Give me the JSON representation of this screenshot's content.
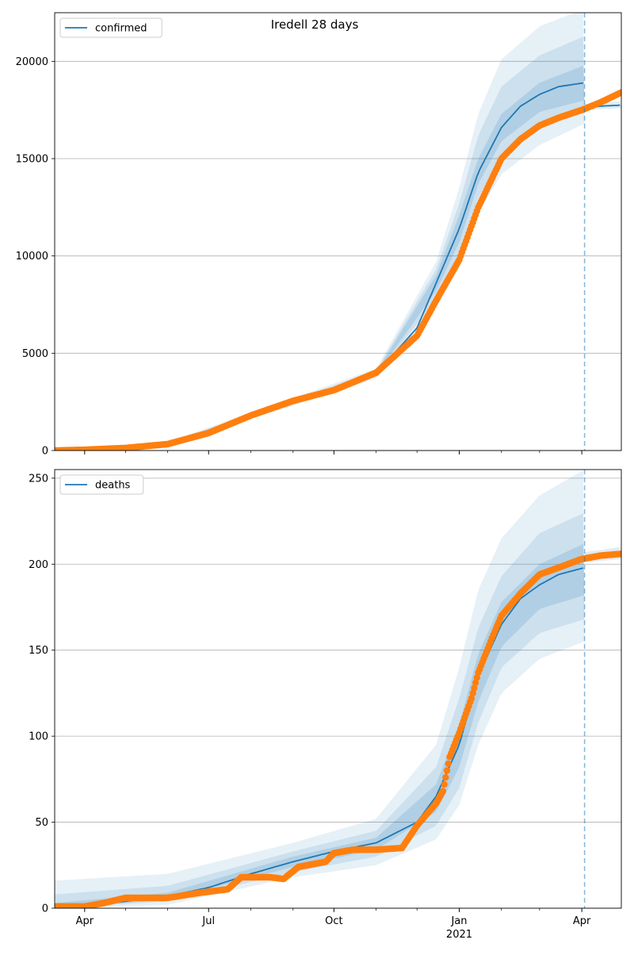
{
  "figure": {
    "suptitle": "Iredell 28 days"
  },
  "chart_data": [
    {
      "type": "line",
      "name": "confirmed",
      "legend": {
        "label": "confirmed",
        "position": "upper-left"
      },
      "ylim": [
        0,
        22500
      ],
      "xlim": [
        "2020-03-10",
        "2021-04-30"
      ],
      "yticks": [
        0,
        5000,
        10000,
        15000,
        20000
      ],
      "ytick_labels": [
        "0",
        "5000",
        "10000",
        "15000",
        "20000"
      ],
      "xticks": [
        "2020-04-01",
        "2020-07-01",
        "2020-10-01",
        "2021-01-01",
        "2021-04-01"
      ],
      "xtick_labels": [
        "Apr",
        "Jul",
        "Oct",
        "Jan",
        "Apr"
      ],
      "year_label": "2021",
      "grid": "horizontal",
      "forecast_start": "2021-04-03",
      "series": [
        {
          "name": "confirmed",
          "kind": "model-median",
          "color": "#1f77b4",
          "points": [
            [
              "2020-03-10",
              0
            ],
            [
              "2020-04-01",
              30
            ],
            [
              "2020-05-01",
              150
            ],
            [
              "2020-06-01",
              380
            ],
            [
              "2020-07-01",
              950
            ],
            [
              "2020-08-01",
              1750
            ],
            [
              "2020-09-01",
              2450
            ],
            [
              "2020-10-01",
              3050
            ],
            [
              "2020-11-01",
              3950
            ],
            [
              "2020-12-01",
              6300
            ],
            [
              "2020-12-15",
              8600
            ],
            [
              "2021-01-01",
              11400
            ],
            [
              "2021-01-15",
              14300
            ],
            [
              "2021-02-01",
              16600
            ],
            [
              "2021-02-15",
              17700
            ],
            [
              "2021-03-01",
              18300
            ],
            [
              "2021-03-15",
              18700
            ],
            [
              "2021-04-03",
              18900
            ]
          ]
        },
        {
          "name": "confirmed-projection",
          "kind": "model-projection",
          "color": "#1f77b4",
          "points": [
            [
              "2021-04-03",
              17600
            ],
            [
              "2021-04-15",
              17700
            ],
            [
              "2021-04-30",
              17750
            ]
          ]
        }
      ],
      "bands": [
        {
          "level": "outer",
          "lower": [
            [
              "2020-03-10",
              0
            ],
            [
              "2020-06-01",
              300
            ],
            [
              "2020-09-01",
              2300
            ],
            [
              "2020-11-01",
              3700
            ],
            [
              "2020-12-15",
              7400
            ],
            [
              "2021-01-01",
              9400
            ],
            [
              "2021-01-15",
              12200
            ],
            [
              "2021-02-01",
              14200
            ],
            [
              "2021-03-01",
              15700
            ],
            [
              "2021-04-03",
              16800
            ]
          ],
          "upper": [
            [
              "2020-03-10",
              0
            ],
            [
              "2020-06-01",
              450
            ],
            [
              "2020-09-01",
              2700
            ],
            [
              "2020-11-01",
              4200
            ],
            [
              "2020-12-15",
              9700
            ],
            [
              "2021-01-01",
              13500
            ],
            [
              "2021-01-15",
              17300
            ],
            [
              "2021-02-01",
              20100
            ],
            [
              "2021-03-01",
              21800
            ],
            [
              "2021-04-03",
              22700
            ]
          ]
        },
        {
          "level": "middle",
          "lower": [
            [
              "2020-03-10",
              0
            ],
            [
              "2020-06-01",
              330
            ],
            [
              "2020-09-01",
              2350
            ],
            [
              "2020-11-01",
              3800
            ],
            [
              "2020-12-15",
              7800
            ],
            [
              "2021-01-01",
              10000
            ],
            [
              "2021-01-15",
              13000
            ],
            [
              "2021-02-01",
              15100
            ],
            [
              "2021-03-01",
              16600
            ],
            [
              "2021-04-03",
              17400
            ]
          ],
          "upper": [
            [
              "2020-03-10",
              0
            ],
            [
              "2020-06-01",
              420
            ],
            [
              "2020-09-01",
              2600
            ],
            [
              "2020-11-01",
              4100
            ],
            [
              "2020-12-15",
              9300
            ],
            [
              "2021-01-01",
              12700
            ],
            [
              "2021-01-15",
              16200
            ],
            [
              "2021-02-01",
              18700
            ],
            [
              "2021-03-01",
              20300
            ],
            [
              "2021-04-03",
              21300
            ]
          ]
        },
        {
          "level": "inner",
          "lower": [
            [
              "2020-03-10",
              0
            ],
            [
              "2020-06-01",
              360
            ],
            [
              "2020-09-01",
              2400
            ],
            [
              "2020-11-01",
              3880
            ],
            [
              "2020-12-15",
              8200
            ],
            [
              "2021-01-01",
              10700
            ],
            [
              "2021-01-15",
              13700
            ],
            [
              "2021-02-01",
              15900
            ],
            [
              "2021-03-01",
              17400
            ],
            [
              "2021-04-03",
              18000
            ]
          ],
          "upper": [
            [
              "2020-03-10",
              0
            ],
            [
              "2020-06-01",
              400
            ],
            [
              "2020-09-01",
              2520
            ],
            [
              "2020-11-01",
              4020
            ],
            [
              "2020-12-15",
              9000
            ],
            [
              "2021-01-01",
              12100
            ],
            [
              "2021-01-15",
              15000
            ],
            [
              "2021-02-01",
              17300
            ],
            [
              "2021-03-01",
              18900
            ],
            [
              "2021-04-03",
              19800
            ]
          ]
        }
      ],
      "projection_band": {
        "lower": [
          [
            "2021-04-03",
            17500
          ],
          [
            "2021-04-30",
            17600
          ]
        ],
        "upper": [
          [
            "2021-04-03",
            17800
          ],
          [
            "2021-04-30",
            17950
          ]
        ]
      },
      "observed": {
        "color": "#ff7f0e",
        "points": [
          [
            "2020-03-10",
            0
          ],
          [
            "2020-04-01",
            40
          ],
          [
            "2020-05-01",
            130
          ],
          [
            "2020-06-01",
            330
          ],
          [
            "2020-07-01",
            900
          ],
          [
            "2020-08-01",
            1800
          ],
          [
            "2020-09-01",
            2550
          ],
          [
            "2020-10-01",
            3100
          ],
          [
            "2020-11-01",
            4000
          ],
          [
            "2020-12-01",
            5900
          ],
          [
            "2020-12-15",
            7700
          ],
          [
            "2021-01-01",
            9800
          ],
          [
            "2021-01-15",
            12500
          ],
          [
            "2021-02-01",
            15000
          ],
          [
            "2021-02-15",
            16000
          ],
          [
            "2021-03-01",
            16700
          ],
          [
            "2021-03-15",
            17100
          ],
          [
            "2021-04-01",
            17500
          ],
          [
            "2021-04-15",
            17900
          ],
          [
            "2021-04-30",
            18400
          ]
        ]
      }
    },
    {
      "type": "line",
      "name": "deaths",
      "legend": {
        "label": "deaths",
        "position": "upper-left"
      },
      "ylim": [
        0,
        255
      ],
      "xlim": [
        "2020-03-10",
        "2021-04-30"
      ],
      "yticks": [
        0,
        50,
        100,
        150,
        200,
        250
      ],
      "ytick_labels": [
        "0",
        "50",
        "100",
        "150",
        "200",
        "250"
      ],
      "xticks": [
        "2020-04-01",
        "2020-07-01",
        "2020-10-01",
        "2021-01-01",
        "2021-04-01"
      ],
      "xtick_labels": [
        "Apr",
        "Jul",
        "Oct",
        "Jan",
        "Apr"
      ],
      "year_label": "2021",
      "grid": "horizontal",
      "forecast_start": "2021-04-03",
      "series": [
        {
          "name": "deaths",
          "kind": "model-median",
          "color": "#1f77b4",
          "points": [
            [
              "2020-03-10",
              0
            ],
            [
              "2020-04-01",
              1
            ],
            [
              "2020-05-01",
              4
            ],
            [
              "2020-06-01",
              7
            ],
            [
              "2020-07-01",
              12
            ],
            [
              "2020-08-01",
              20
            ],
            [
              "2020-09-01",
              27
            ],
            [
              "2020-10-01",
              33
            ],
            [
              "2020-11-01",
              38
            ],
            [
              "2020-12-01",
              50
            ],
            [
              "2020-12-15",
              65
            ],
            [
              "2021-01-01",
              95
            ],
            [
              "2021-01-15",
              135
            ],
            [
              "2021-02-01",
              165
            ],
            [
              "2021-02-15",
              180
            ],
            [
              "2021-03-01",
              188
            ],
            [
              "2021-03-15",
              194
            ],
            [
              "2021-04-03",
              198
            ]
          ]
        }
      ],
      "bands": [
        {
          "level": "outer",
          "lower": [
            [
              "2020-03-10",
              0
            ],
            [
              "2020-06-01",
              2
            ],
            [
              "2020-09-01",
              18
            ],
            [
              "2020-11-01",
              25
            ],
            [
              "2020-12-15",
              40
            ],
            [
              "2021-01-01",
              60
            ],
            [
              "2021-01-15",
              95
            ],
            [
              "2021-02-01",
              125
            ],
            [
              "2021-03-01",
              145
            ],
            [
              "2021-04-03",
              155
            ]
          ],
          "upper": [
            [
              "2020-03-10",
              16
            ],
            [
              "2020-06-01",
              20
            ],
            [
              "2020-09-01",
              38
            ],
            [
              "2020-11-01",
              52
            ],
            [
              "2020-12-15",
              95
            ],
            [
              "2021-01-01",
              140
            ],
            [
              "2021-01-15",
              185
            ],
            [
              "2021-02-01",
              215
            ],
            [
              "2021-03-01",
              240
            ],
            [
              "2021-04-03",
              255
            ]
          ]
        },
        {
          "level": "middle",
          "lower": [
            [
              "2020-03-10",
              0
            ],
            [
              "2020-06-01",
              4
            ],
            [
              "2020-09-01",
              21
            ],
            [
              "2020-11-01",
              30
            ],
            [
              "2020-12-15",
              48
            ],
            [
              "2021-01-01",
              70
            ],
            [
              "2021-01-15",
              108
            ],
            [
              "2021-02-01",
              140
            ],
            [
              "2021-03-01",
              160
            ],
            [
              "2021-04-03",
              168
            ]
          ],
          "upper": [
            [
              "2020-03-10",
              8
            ],
            [
              "2020-06-01",
              13
            ],
            [
              "2020-09-01",
              33
            ],
            [
              "2020-11-01",
              45
            ],
            [
              "2020-12-15",
              82
            ],
            [
              "2021-01-01",
              122
            ],
            [
              "2021-01-15",
              163
            ],
            [
              "2021-02-01",
              193
            ],
            [
              "2021-03-01",
              218
            ],
            [
              "2021-04-03",
              230
            ]
          ]
        },
        {
          "level": "inner",
          "lower": [
            [
              "2020-03-10",
              0
            ],
            [
              "2020-06-01",
              5
            ],
            [
              "2020-09-01",
              24
            ],
            [
              "2020-11-01",
              34
            ],
            [
              "2020-12-15",
              56
            ],
            [
              "2021-01-01",
              82
            ],
            [
              "2021-01-15",
              120
            ],
            [
              "2021-02-01",
              152
            ],
            [
              "2021-03-01",
              174
            ],
            [
              "2021-04-03",
              182
            ]
          ],
          "upper": [
            [
              "2020-03-10",
              3
            ],
            [
              "2020-06-01",
              9
            ],
            [
              "2020-09-01",
              30
            ],
            [
              "2020-11-01",
              41
            ],
            [
              "2020-12-15",
              72
            ],
            [
              "2021-01-01",
              107
            ],
            [
              "2021-01-15",
              148
            ],
            [
              "2021-02-01",
              178
            ],
            [
              "2021-03-01",
              200
            ],
            [
              "2021-04-03",
              212
            ]
          ]
        }
      ],
      "projection_band": {
        "lower": [
          [
            "2021-04-03",
            201
          ],
          [
            "2021-04-30",
            203
          ]
        ],
        "upper": [
          [
            "2021-04-03",
            207
          ],
          [
            "2021-04-30",
            210
          ]
        ]
      },
      "observed": {
        "color": "#ff7f0e",
        "points": [
          [
            "2020-03-10",
            1
          ],
          [
            "2020-04-01",
            1
          ],
          [
            "2020-04-15",
            3
          ],
          [
            "2020-05-01",
            6
          ],
          [
            "2020-06-01",
            6
          ],
          [
            "2020-06-25",
            9
          ],
          [
            "2020-07-15",
            11
          ],
          [
            "2020-07-25",
            18
          ],
          [
            "2020-08-15",
            18
          ],
          [
            "2020-08-25",
            17
          ],
          [
            "2020-09-05",
            24
          ],
          [
            "2020-09-25",
            27
          ],
          [
            "2020-10-01",
            32
          ],
          [
            "2020-10-15",
            34
          ],
          [
            "2020-11-01",
            34
          ],
          [
            "2020-11-20",
            35
          ],
          [
            "2020-12-01",
            48
          ],
          [
            "2020-12-15",
            61
          ],
          [
            "2020-12-20",
            68
          ],
          [
            "2020-12-25",
            88
          ],
          [
            "2021-01-01",
            102
          ],
          [
            "2021-01-10",
            122
          ],
          [
            "2021-01-15",
            137
          ],
          [
            "2021-01-25",
            157
          ],
          [
            "2021-02-01",
            170
          ],
          [
            "2021-02-15",
            183
          ],
          [
            "2021-03-01",
            194
          ],
          [
            "2021-03-15",
            198
          ],
          [
            "2021-04-01",
            203
          ],
          [
            "2021-04-15",
            205
          ],
          [
            "2021-04-30",
            206
          ]
        ]
      }
    }
  ]
}
